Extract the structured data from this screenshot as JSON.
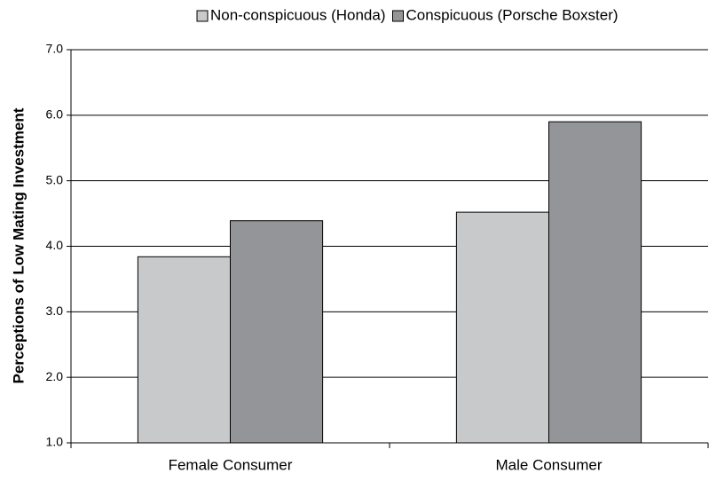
{
  "chart_data": {
    "type": "bar",
    "y_label": "Perceptions of Low Mating Investment",
    "categories": [
      "Female Consumer",
      "Male Consumer"
    ],
    "series": [
      {
        "name": "Non-conspicuous (Honda)",
        "color": "#c8c9cb",
        "values": [
          3.84,
          4.52
        ]
      },
      {
        "name": "Conspicuous (Porsche Boxster)",
        "color": "#939598",
        "values": [
          4.39,
          5.9
        ]
      }
    ],
    "ylim": [
      1,
      7
    ],
    "yticks": [
      {
        "value": 1,
        "label": "1.0"
      },
      {
        "value": 2,
        "label": "2.0"
      },
      {
        "value": 3,
        "label": "3.0"
      },
      {
        "value": 4,
        "label": "4.0"
      },
      {
        "value": 5,
        "label": "5.0"
      },
      {
        "value": 6,
        "label": "6.0"
      },
      {
        "value": 7,
        "label": "7.0"
      }
    ],
    "grid": true,
    "legend": "top"
  }
}
